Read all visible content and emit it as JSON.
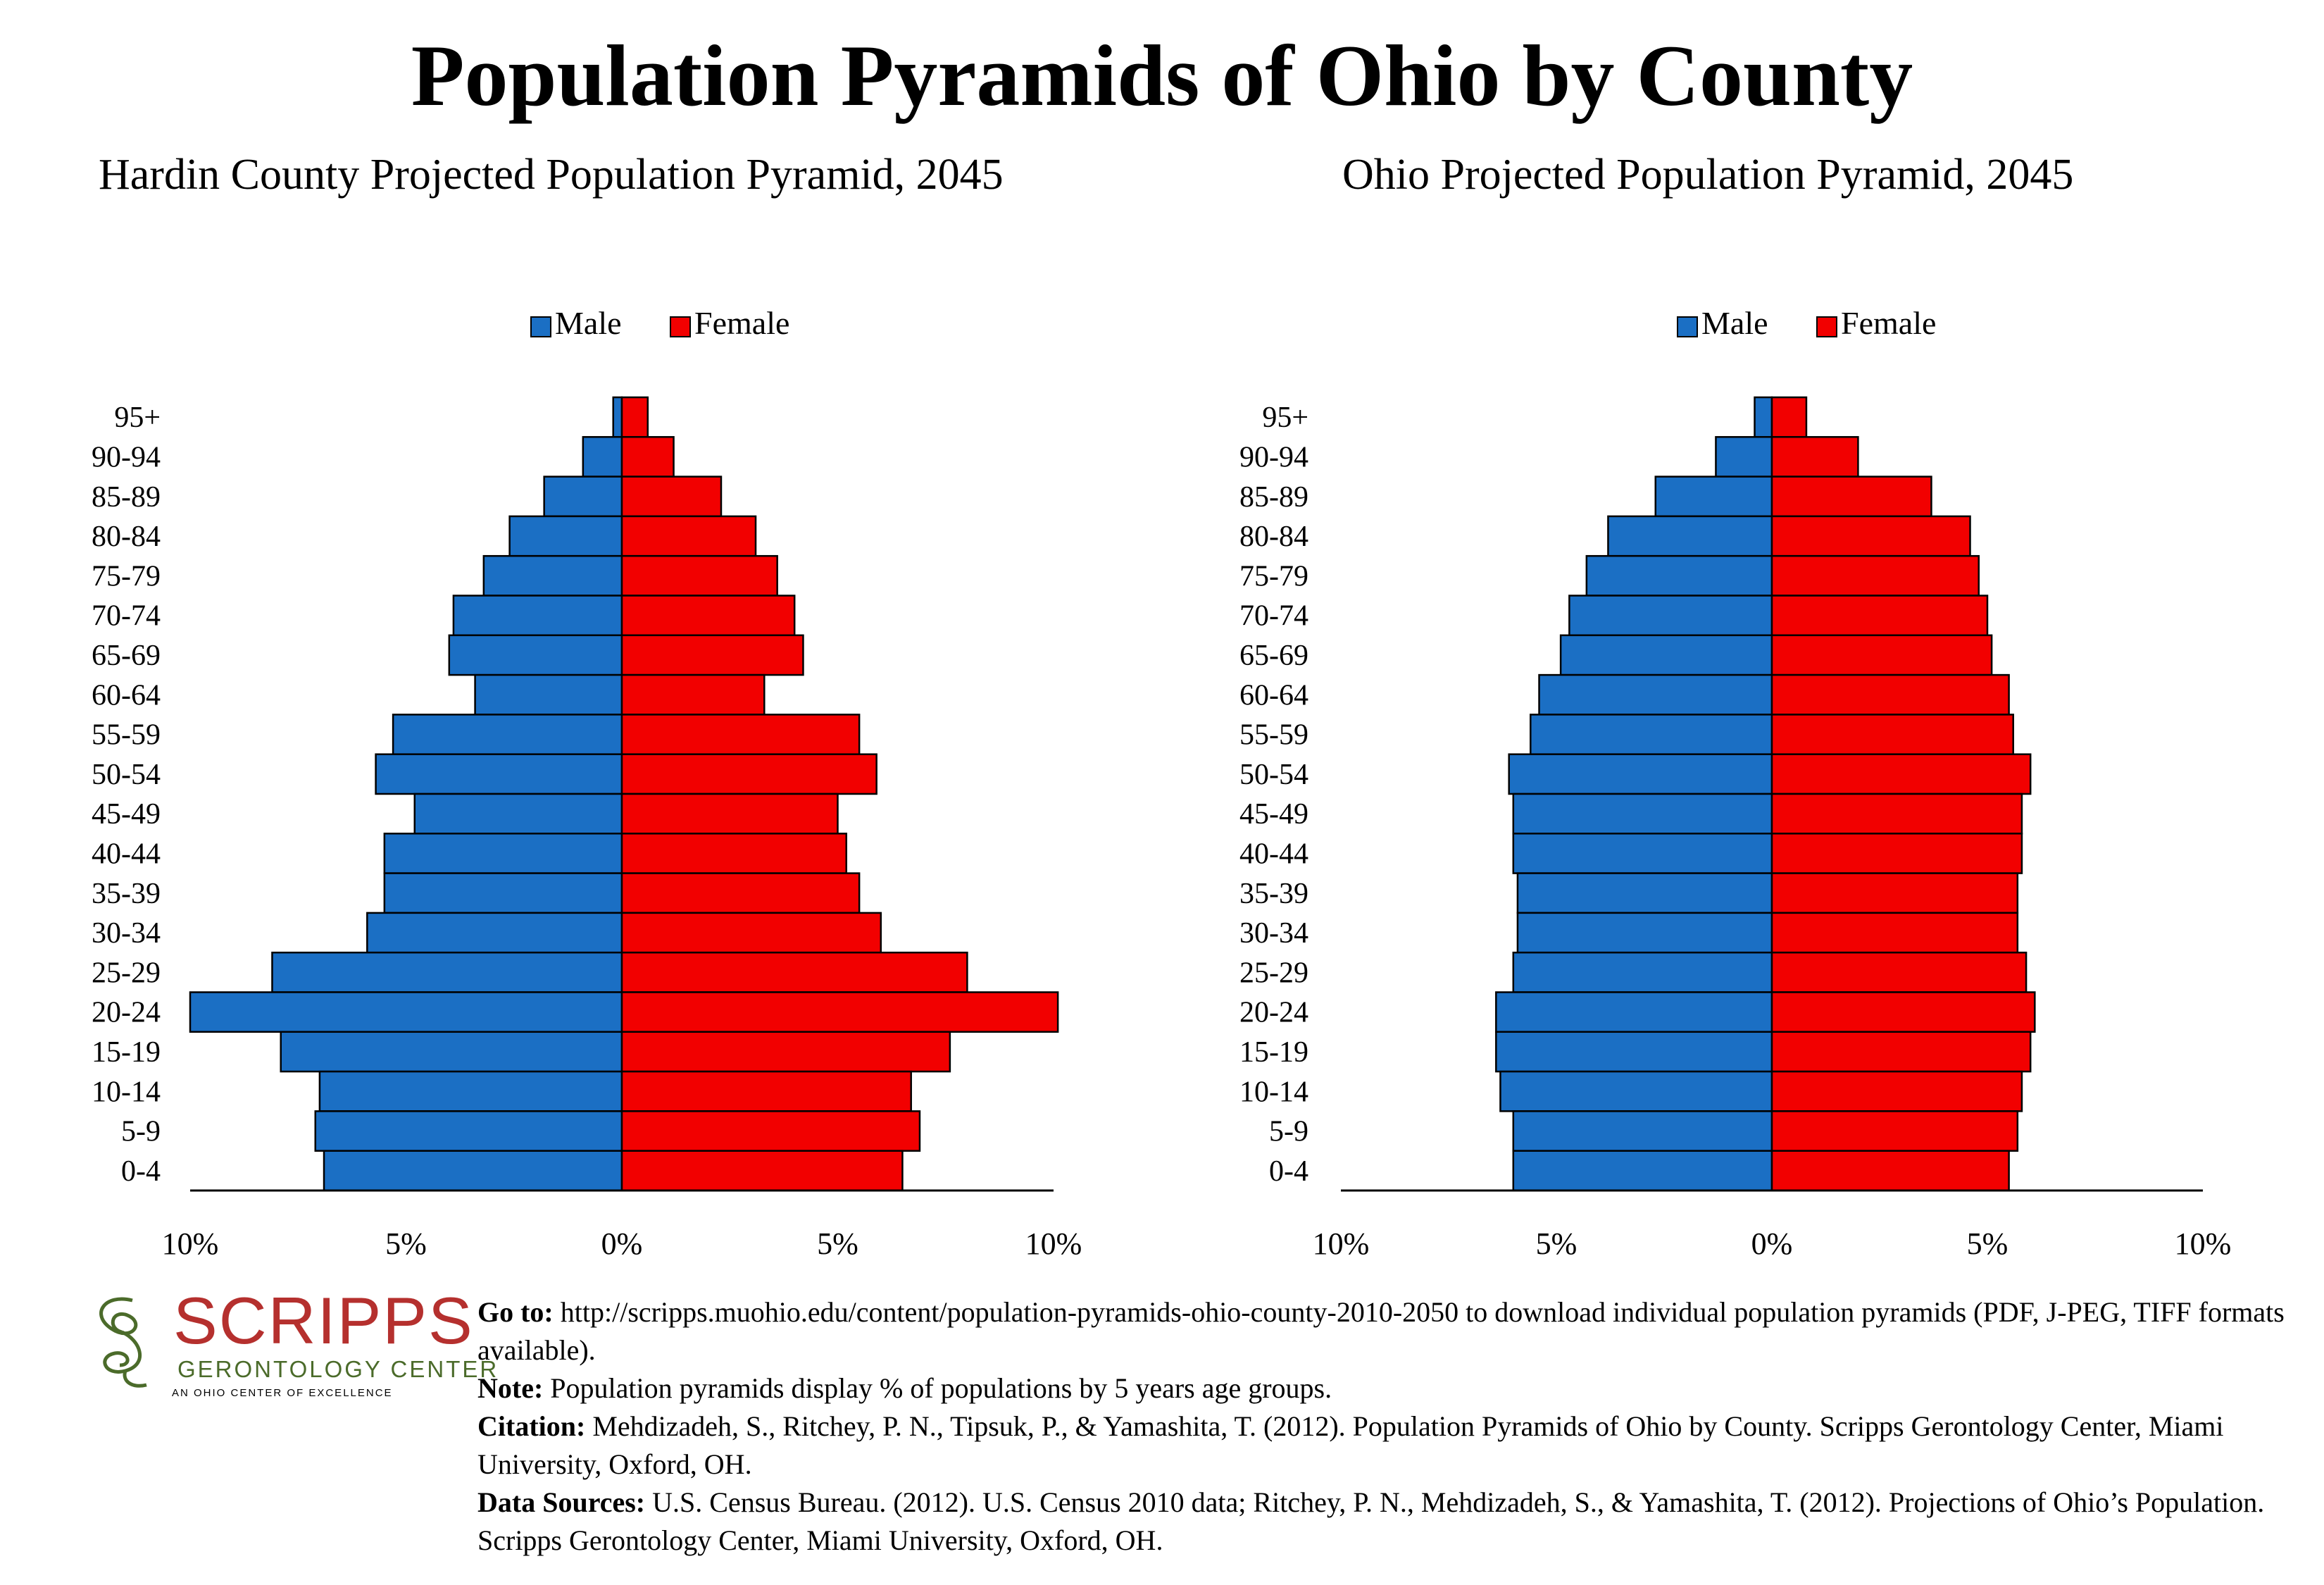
{
  "title": "Population Pyramids of Ohio by County",
  "colors": {
    "male": "#1b6fc4",
    "female": "#f20000",
    "border": "#000000"
  },
  "legend": {
    "male": "Male",
    "female": "Female"
  },
  "chart_data": [
    {
      "type": "bar",
      "orientation": "horizontal",
      "title": "Hardin County Projected Population Pyramid, 2045",
      "categories": [
        "95+",
        "90-94",
        "85-89",
        "80-84",
        "75-79",
        "70-74",
        "65-69",
        "60-64",
        "55-59",
        "50-54",
        "45-49",
        "40-44",
        "35-39",
        "30-34",
        "25-29",
        "20-24",
        "15-19",
        "10-14",
        "5-9",
        "0-4"
      ],
      "series": [
        {
          "name": "Male",
          "values": [
            0.2,
            0.9,
            1.8,
            2.6,
            3.2,
            3.9,
            4.0,
            3.4,
            5.3,
            5.7,
            4.8,
            5.5,
            5.5,
            5.9,
            8.1,
            10.0,
            7.9,
            7.0,
            7.1,
            6.9
          ]
        },
        {
          "name": "Female",
          "values": [
            0.6,
            1.2,
            2.3,
            3.1,
            3.6,
            4.0,
            4.2,
            3.3,
            5.5,
            5.9,
            5.0,
            5.2,
            5.5,
            6.0,
            8.0,
            10.1,
            7.6,
            6.7,
            6.9,
            6.5
          ]
        }
      ],
      "xlim": [
        -10,
        10
      ],
      "xticks": [
        "10%",
        "5%",
        "0%",
        "5%",
        "10%"
      ],
      "legend_position": "top-center"
    },
    {
      "type": "bar",
      "orientation": "horizontal",
      "title": "Ohio Projected Population Pyramid, 2045",
      "categories": [
        "95+",
        "90-94",
        "85-89",
        "80-84",
        "75-79",
        "70-74",
        "65-69",
        "60-64",
        "55-59",
        "50-54",
        "45-49",
        "40-44",
        "35-39",
        "30-34",
        "25-29",
        "20-24",
        "15-19",
        "10-14",
        "5-9",
        "0-4"
      ],
      "series": [
        {
          "name": "Male",
          "values": [
            0.4,
            1.3,
            2.7,
            3.8,
            4.3,
            4.7,
            4.9,
            5.4,
            5.6,
            6.1,
            6.0,
            6.0,
            5.9,
            5.9,
            6.0,
            6.4,
            6.4,
            6.3,
            6.0,
            6.0
          ]
        },
        {
          "name": "Female",
          "values": [
            0.8,
            2.0,
            3.7,
            4.6,
            4.8,
            5.0,
            5.1,
            5.5,
            5.6,
            6.0,
            5.8,
            5.8,
            5.7,
            5.7,
            5.9,
            6.1,
            6.0,
            5.8,
            5.7,
            5.5
          ]
        }
      ],
      "xlim": [
        -10,
        10
      ],
      "xticks": [
        "10%",
        "5%",
        "0%",
        "5%",
        "10%"
      ],
      "legend_position": "top-center"
    }
  ],
  "logo": {
    "word": "SCRIPPS",
    "subtitle": "GERONTOLOGY CENTER",
    "tagline": "AN OHIO CENTER OF EXCELLENCE"
  },
  "notes": [
    {
      "label": "Go to:",
      "text": " http://scripps.muohio.edu/content/population-pyramids-ohio-county-2010-2050 to download individual population pyramids (PDF, J-PEG, TIFF formats available)."
    },
    {
      "label": "Note:",
      "text": " Population pyramids display % of populations by 5 years age groups."
    },
    {
      "label": "Citation:",
      "text": " Mehdizadeh, S., Ritchey, P. N., Tipsuk, P., & Yamashita, T. (2012). Population Pyramids of Ohio by County. Scripps Gerontology Center, Miami University, Oxford, OH."
    },
    {
      "label": "Data Sources:",
      "text": " U.S. Census Bureau. (2012). U.S. Census 2010 data; Ritchey, P. N., Mehdizadeh, S., & Yamashita, T. (2012). Projections of Ohio’s Population. Scripps Gerontology Center, Miami University, Oxford, OH."
    }
  ]
}
